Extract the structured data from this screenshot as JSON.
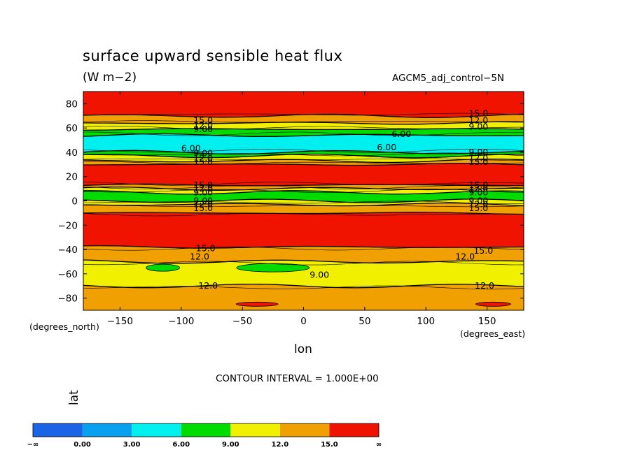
{
  "chart_data": {
    "type": "contour",
    "title": "surface upward sensible heat flux",
    "units": "(W m−2)",
    "dataset": "AGCM5_adj_control−5N",
    "xlabel": "lon",
    "ylabel": "lat",
    "x_units_label": "(degrees_east)",
    "y_units_label": "(degrees_north)",
    "xlim": [
      -180,
      180
    ],
    "ylim": [
      -90,
      90
    ],
    "x_ticks": [
      -150,
      -100,
      -50,
      0,
      50,
      100,
      150
    ],
    "x_tick_labels": [
      "−150",
      "−100",
      "−50",
      "0",
      "50",
      "100",
      "150"
    ],
    "y_ticks": [
      80,
      60,
      40,
      20,
      0,
      -20,
      -40,
      -60,
      -80
    ],
    "y_tick_labels": [
      "80",
      "60",
      "40",
      "20",
      "0",
      "−20",
      "−40",
      "−60",
      "−80"
    ],
    "contour_interval": "CONTOUR INTERVAL = 1.000E+00",
    "levels": [
      0,
      3,
      6,
      9,
      12,
      15
    ],
    "colorbar": {
      "labels": [
        "−∞",
        "0.00",
        "3.00",
        "6.00",
        "9.00",
        "12.0",
        "15.0",
        "∞"
      ],
      "colors": [
        "#1c64e6",
        "#0aa0f0",
        "#00f0f0",
        "#00dc00",
        "#f0f000",
        "#f0a000",
        "#f01400"
      ]
    },
    "zonal_bands": [
      {
        "lat_top": 90,
        "lat_bottom": 70,
        "color": "#f01400",
        "value_range": "> 15"
      },
      {
        "lat_top": 70,
        "lat_bottom": 64,
        "color": "#f0a000",
        "value_range": "12-15"
      },
      {
        "lat_top": 64,
        "lat_bottom": 59,
        "color": "#f0f000",
        "value_range": "9-12"
      },
      {
        "lat_top": 59,
        "lat_bottom": 54,
        "color": "#00dc00",
        "value_range": "6-9"
      },
      {
        "lat_top": 54,
        "lat_bottom": 40,
        "color": "#00f0f0",
        "value_range": "3-6"
      },
      {
        "lat_top": 40,
        "lat_bottom": 37,
        "color": "#00dc00",
        "value_range": "6-9"
      },
      {
        "lat_top": 37,
        "lat_bottom": 33,
        "color": "#f0f000",
        "value_range": "9-12"
      },
      {
        "lat_top": 33,
        "lat_bottom": 30,
        "color": "#f0a000",
        "value_range": "12-15"
      },
      {
        "lat_top": 30,
        "lat_bottom": 13,
        "color": "#f01400",
        "value_range": "> 15"
      },
      {
        "lat_top": 13,
        "lat_bottom": 10,
        "color": "#f0a000",
        "value_range": "12-15"
      },
      {
        "lat_top": 10,
        "lat_bottom": 7,
        "color": "#f0f000",
        "value_range": "9-12"
      },
      {
        "lat_top": 7,
        "lat_bottom": 0,
        "color": "#00dc00",
        "value_range": "6-9"
      },
      {
        "lat_top": 0,
        "lat_bottom": -3,
        "color": "#f0f000",
        "value_range": "9-12"
      },
      {
        "lat_top": -3,
        "lat_bottom": -10,
        "color": "#f0a000",
        "value_range": "12-15"
      },
      {
        "lat_top": -10,
        "lat_bottom": -38,
        "color": "#f01400",
        "value_range": "> 15"
      },
      {
        "lat_top": -38,
        "lat_bottom": -50,
        "color": "#f0a000",
        "value_range": "12-15"
      },
      {
        "lat_top": -50,
        "lat_bottom": -70,
        "color": "#f0f000",
        "value_range": "9-12"
      },
      {
        "lat_top": -70,
        "lat_bottom": -90,
        "color": "#f0a000",
        "value_range": "12-15"
      }
    ],
    "contour_labels": [
      {
        "text": "15.0",
        "lon": -82,
        "lat": 66
      },
      {
        "text": "12.0",
        "lon": -82,
        "lat": 62
      },
      {
        "text": "9.00",
        "lon": -82,
        "lat": 59
      },
      {
        "text": "6.00",
        "lon": 80,
        "lat": 55
      },
      {
        "text": "6.00",
        "lon": 68,
        "lat": 44
      },
      {
        "text": "6.00",
        "lon": -92,
        "lat": 43
      },
      {
        "text": "9.00",
        "lon": -82,
        "lat": 39
      },
      {
        "text": "12.0",
        "lon": -82,
        "lat": 35
      },
      {
        "text": "15.0",
        "lon": -82,
        "lat": 32
      },
      {
        "text": "15.0",
        "lon": 143,
        "lat": 72
      },
      {
        "text": "12.0",
        "lon": 143,
        "lat": 66
      },
      {
        "text": "9.00",
        "lon": 143,
        "lat": 61
      },
      {
        "text": "9.00",
        "lon": 143,
        "lat": 40
      },
      {
        "text": "12.0",
        "lon": 143,
        "lat": 35
      },
      {
        "text": "15.0",
        "lon": 143,
        "lat": 32
      },
      {
        "text": "15.0",
        "lon": -82,
        "lat": 13
      },
      {
        "text": "12.0",
        "lon": -82,
        "lat": 10
      },
      {
        "text": "9.00",
        "lon": -82,
        "lat": 7
      },
      {
        "text": "9.00",
        "lon": -82,
        "lat": 0
      },
      {
        "text": "12.0",
        "lon": -82,
        "lat": -3
      },
      {
        "text": "15.0",
        "lon": -82,
        "lat": -6
      },
      {
        "text": "15.0",
        "lon": 143,
        "lat": 13
      },
      {
        "text": "12.0",
        "lon": 143,
        "lat": 10
      },
      {
        "text": "9.00",
        "lon": 143,
        "lat": 7
      },
      {
        "text": "9.00",
        "lon": 143,
        "lat": 0
      },
      {
        "text": "12.0",
        "lon": 143,
        "lat": -3
      },
      {
        "text": "15.0",
        "lon": 143,
        "lat": -6
      },
      {
        "text": "15.0",
        "lon": -80,
        "lat": -39
      },
      {
        "text": "12.0",
        "lon": -85,
        "lat": -46
      },
      {
        "text": "15.0",
        "lon": 147,
        "lat": -41
      },
      {
        "text": "12.0",
        "lon": 132,
        "lat": -46
      },
      {
        "text": "9.00",
        "lon": 13,
        "lat": -61
      },
      {
        "text": "12.0",
        "lon": -78,
        "lat": -70
      },
      {
        "text": "12.0",
        "lon": 148,
        "lat": -70
      }
    ],
    "grid": false
  }
}
